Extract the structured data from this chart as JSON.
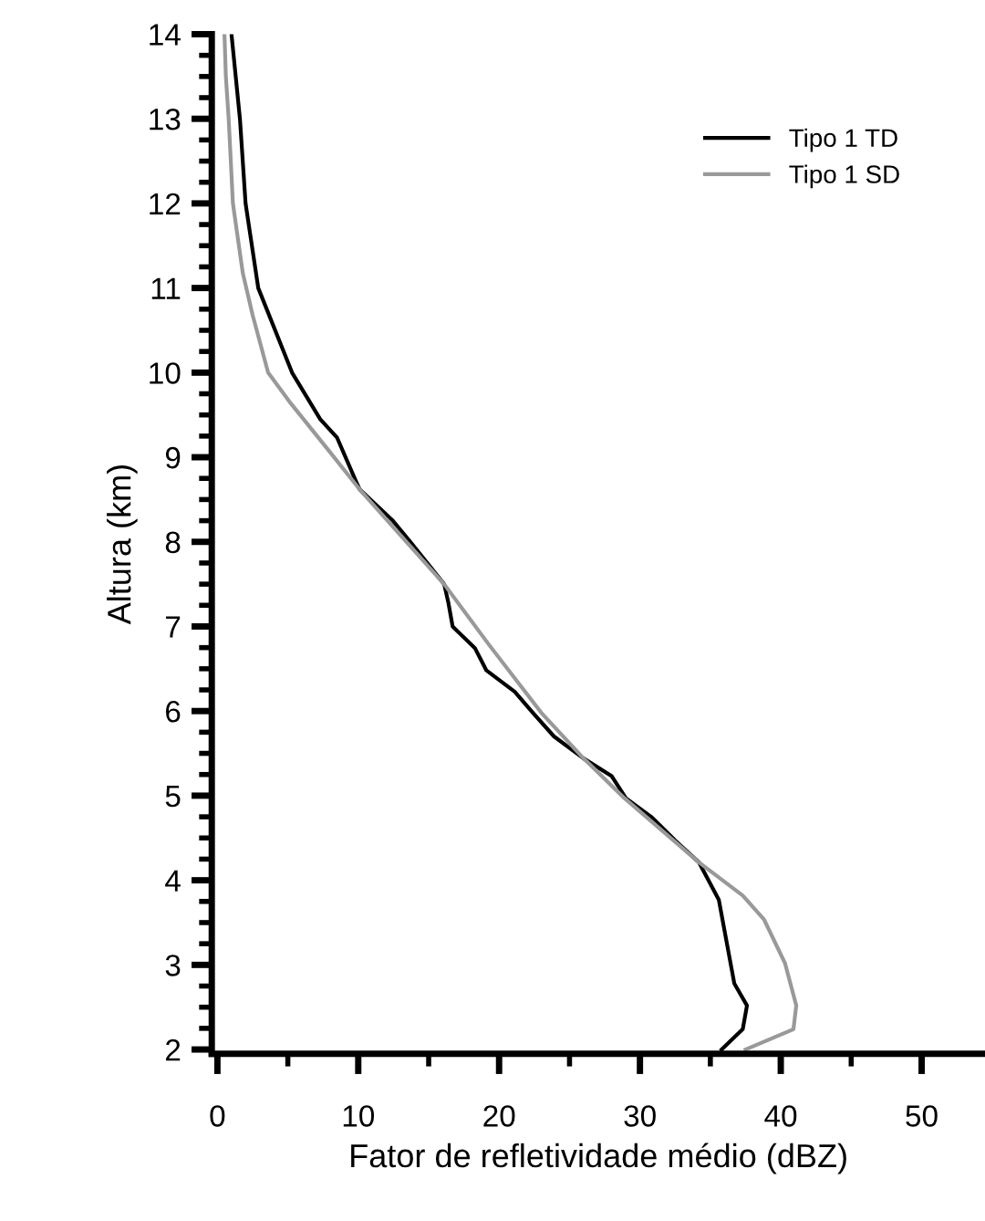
{
  "chart_data": {
    "type": "line",
    "xlabel": "Fator de refletividade médio (dBZ)",
    "ylabel": "Altura (km)",
    "xlim": [
      -0.4,
      54.5
    ],
    "xticks": [
      0,
      10,
      20,
      30,
      40,
      50
    ],
    "ylim": [
      1.95,
      14
    ],
    "yticks": [
      2,
      3,
      4,
      5,
      6,
      7,
      8,
      9,
      10,
      11,
      12,
      13,
      14
    ],
    "legend": "top right",
    "grid": false,
    "marker": "none",
    "line_style": "solid",
    "series": [
      {
        "name": "Tipo 1 TD",
        "color": "#000000",
        "x": [
          1.0,
          1.6,
          2.0,
          2.9,
          5.3,
          7.3,
          8.5,
          9.8,
          10.1,
          12.4,
          13.7,
          16.1,
          16.4,
          16.7,
          18.3,
          19.1,
          21.1,
          22.4,
          23.9,
          26.0,
          28.0,
          29.0,
          30.8,
          32.5,
          34.2,
          35.6,
          36.7,
          37.6,
          37.3,
          35.8
        ],
        "values": [
          14.0,
          13.0,
          12.0,
          11.0,
          10.0,
          9.45,
          9.23,
          8.73,
          8.62,
          8.26,
          8.0,
          7.5,
          7.28,
          7.0,
          6.74,
          6.48,
          6.23,
          5.98,
          5.7,
          5.44,
          5.23,
          4.97,
          4.75,
          4.47,
          4.21,
          3.77,
          2.78,
          2.52,
          2.24,
          2.0
        ]
      },
      {
        "name": "Tipo 1 SD",
        "color": "#999999",
        "x": [
          0.5,
          0.6,
          0.8,
          1.1,
          1.8,
          2.5,
          3.6,
          5.1,
          7.9,
          10.1,
          16.1,
          19.3,
          23.0,
          26.0,
          28.9,
          34.2,
          37.3,
          38.8,
          40.3,
          41.1,
          40.9,
          37.5
        ],
        "values": [
          14.0,
          13.5,
          13.0,
          12.0,
          11.18,
          10.68,
          10.0,
          9.66,
          9.08,
          8.62,
          7.5,
          6.78,
          5.98,
          5.44,
          4.97,
          4.21,
          3.82,
          3.54,
          3.02,
          2.52,
          2.24,
          2.0
        ]
      }
    ]
  }
}
